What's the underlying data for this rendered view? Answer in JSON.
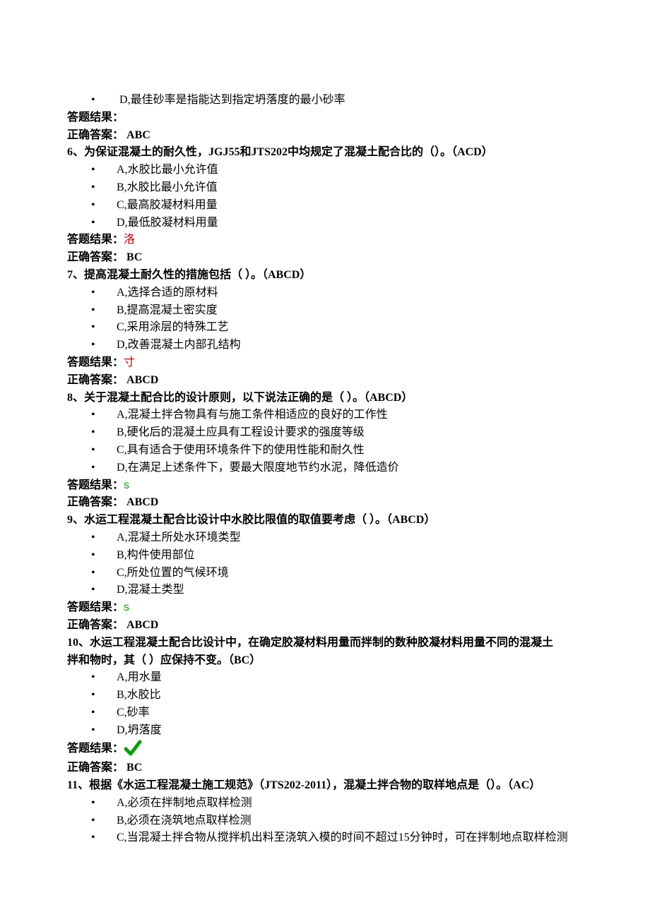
{
  "q5_tail_option": {
    "letter": "D",
    "text": "最佳砂率是指能达到指定坍落度的最小砂率"
  },
  "q5_result_label": "答题结果：",
  "q5_ans_label": "正确答案：  ",
  "q5_ans": "ABC",
  "q6_stem": "6、为保证混凝土的耐久性，JGJ55和JTS202中均规定了混凝土配合比的（）。（ACD）",
  "q6_options": [
    {
      "letter": "A",
      "text": "水胶比最小允许值"
    },
    {
      "letter": "B",
      "text": "水胶比最小允许值"
    },
    {
      "letter": "C",
      "text": "最高胶凝材料用量"
    },
    {
      "letter": "D",
      "text": "最低胶凝材料用量"
    }
  ],
  "q6_result_label": "答题结果：",
  "q6_result_mark": "洛",
  "q6_ans_label": "正确答案：  ",
  "q6_ans": "BC",
  "q7_stem": "7、提高混凝土耐久性的措施包括（  ）。（ABCD）",
  "q7_options": [
    {
      "letter": "A",
      "text": "选择合适的原材料"
    },
    {
      "letter": "B",
      "text": "提高混凝土密实度"
    },
    {
      "letter": "C",
      "text": "采用涂层的特殊工艺"
    },
    {
      "letter": "D",
      "text": "改善混凝土内部孔结构"
    }
  ],
  "q7_result_label": "答题结果：",
  "q7_result_mark": "寸",
  "q7_ans_label": "正确答案：  ",
  "q7_ans": "ABCD",
  "q8_stem": "8、关于混凝土配合比的设计原则，以下说法正确的是（  ）。（ABCD）",
  "q8_options": [
    {
      "letter": "A",
      "text": "混凝土拌合物具有与施工条件相适应的良好的工作性"
    },
    {
      "letter": "B",
      "text": "硬化后的混凝土应具有工程设计要求的强度等级"
    },
    {
      "letter": "C",
      "text": "具有适合于使用环境条件下的使用性能和耐久性"
    },
    {
      "letter": "D",
      "text": "在满足上述条件下，要最大限度地节约水泥，降低造价"
    }
  ],
  "q8_result_label": "答题结果：",
  "q8_result_mark": "s",
  "q8_ans_label": "正确答案：  ",
  "q8_ans": "ABCD",
  "q9_stem": "9、水运工程混凝土配合比设计中水胶比限值的取值要考虑（  ）。（ABCD）",
  "q9_options": [
    {
      "letter": "A",
      "text": "混凝土所处水环境类型"
    },
    {
      "letter": "B",
      "text": "构件使用部位"
    },
    {
      "letter": "C",
      "text": "所处位置的气候环境"
    },
    {
      "letter": "D",
      "text": "混凝土类型"
    }
  ],
  "q9_result_label": "答题结果：",
  "q9_result_mark": "s",
  "q9_ans_label": "正确答案：  ",
  "q9_ans": "ABCD",
  "q10_stem_l1": "10、水运工程混凝土配合比设计中，在确定胶凝材料用量而拌制的数种胶凝材料用量不同的混凝土",
  "q10_stem_l2": "拌和物时，其（  ）应保持不变。（BC）",
  "q10_options": [
    {
      "letter": "A",
      "text": "用水量"
    },
    {
      "letter": "B",
      "text": "水胶比"
    },
    {
      "letter": "C",
      "text": "砂率"
    },
    {
      "letter": "D",
      "text": "坍落度"
    }
  ],
  "q10_result_label": " 答题结果：",
  "q10_ans_label": "正确答案：  ",
  "q10_ans": "BC",
  "q11_stem": "11、根据《水运工程混凝土施工规范》（JTS202-2011），混凝土拌合物的取样地点是（）。（AC）",
  "q11_options": [
    {
      "letter": "A",
      "text": "必须在拌制地点取样检测"
    },
    {
      "letter": "B",
      "text": "必须在浇筑地点取样检测"
    },
    {
      "letter": "C",
      "text": "当混凝土拌合物从搅拌机出料至浇筑入模的时间不超过15分钟时，可在拌制地点取样检测"
    }
  ],
  "check_icon_color": "#00a000"
}
